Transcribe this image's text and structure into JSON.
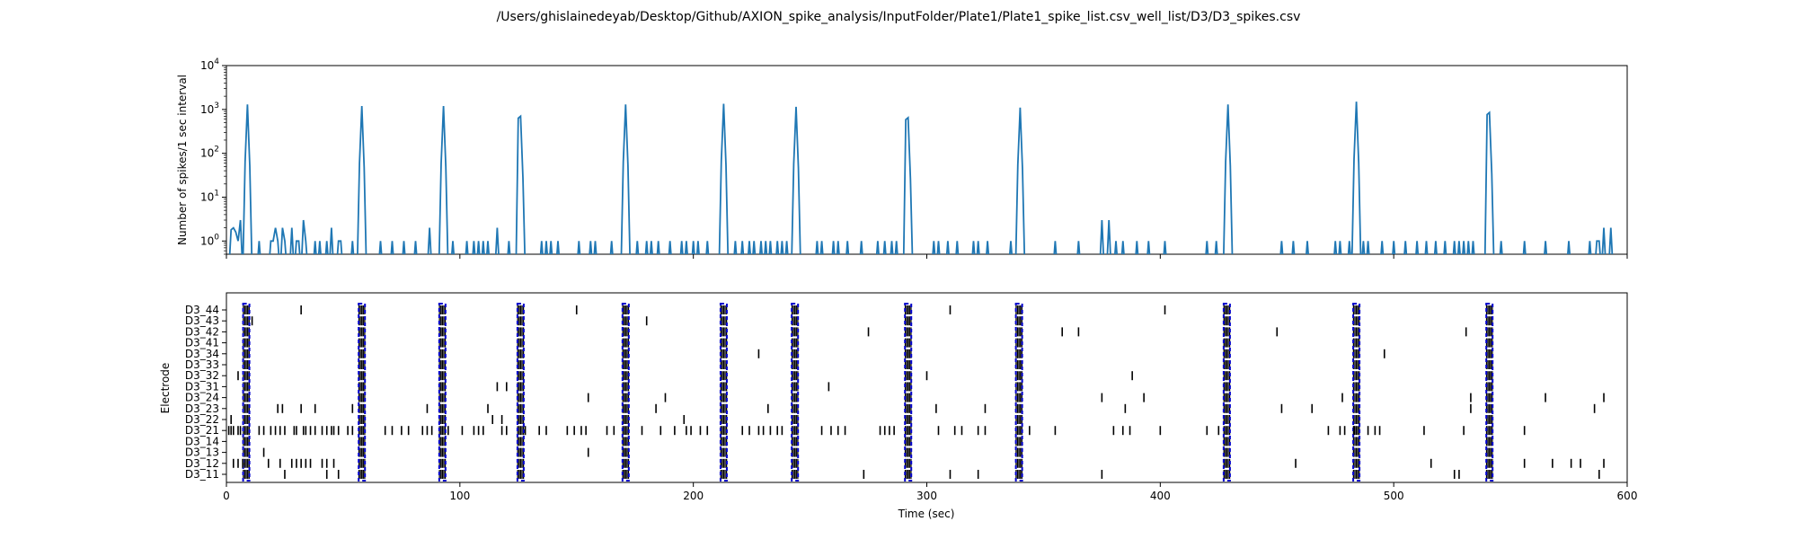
{
  "title": "/Users/ghislainedeyab/Desktop/Github/AXION_spike_analysis/InputFolder/Plate1/Plate1_spike_list.csv_well_list/D3/D3_spikes.csv",
  "chart_data": [
    {
      "type": "line",
      "ylabel": "Number of spikes/1 sec interval",
      "yscale": "log",
      "ylim": [
        0.5,
        10000
      ],
      "xlim": [
        0,
        600
      ],
      "yticks": [
        "10^0",
        "10^1",
        "10^2",
        "10^3",
        "10^4"
      ],
      "color": "#1f77b4",
      "burst_peaks": [
        {
          "t": 8.5,
          "v": 1300
        },
        {
          "t": 58,
          "v": 1200
        },
        {
          "t": 92.5,
          "v": 1200
        },
        {
          "t": 126,
          "v": 700
        },
        {
          "t": 171,
          "v": 1300
        },
        {
          "t": 213,
          "v": 1350
        },
        {
          "t": 243.5,
          "v": 1150
        },
        {
          "t": 292,
          "v": 650
        },
        {
          "t": 339.5,
          "v": 1100
        },
        {
          "t": 428.5,
          "v": 1300
        },
        {
          "t": 484,
          "v": 1500
        },
        {
          "t": 541,
          "v": 850
        }
      ],
      "baseline_value": 1,
      "noise_times": [
        2,
        3,
        4,
        5,
        14,
        19,
        20,
        21,
        22,
        24,
        25,
        28,
        30,
        31,
        33,
        34,
        38,
        40,
        43,
        45,
        48,
        49,
        54,
        66,
        71,
        76,
        81,
        87,
        97,
        103,
        106,
        108,
        110,
        112,
        116,
        121,
        135,
        137,
        139,
        142,
        151,
        156,
        158,
        165,
        176,
        180,
        182,
        185,
        190,
        195,
        197,
        200,
        202,
        206,
        212,
        218,
        221,
        224,
        226,
        229,
        231,
        233,
        236,
        238,
        240,
        253,
        255,
        260,
        262,
        266,
        272,
        279,
        282,
        285,
        287,
        303,
        305,
        309,
        313,
        320,
        322,
        326,
        336,
        355,
        365,
        375,
        378,
        381,
        384,
        390,
        395,
        402,
        420,
        424,
        452,
        457,
        463,
        475,
        477,
        481,
        487,
        489,
        495,
        500,
        505,
        510,
        514,
        518,
        522,
        526,
        528,
        530,
        532,
        534,
        546,
        556,
        565,
        575,
        584,
        587,
        588,
        590,
        593
      ]
    },
    {
      "type": "scatter",
      "marker": "vertical-tick",
      "xlabel": "Time (sec)",
      "ylabel": "Electrode",
      "xlim": [
        0,
        600
      ],
      "xticks": [
        0,
        100,
        200,
        300,
        400,
        500,
        600
      ],
      "categories": [
        "D3_11",
        "D3_12",
        "D3_13",
        "D3_14",
        "D3_21",
        "D3_22",
        "D3_23",
        "D3_24",
        "D3_31",
        "D3_32",
        "D3_33",
        "D3_34",
        "D3_41",
        "D3_42",
        "D3_43",
        "D3_44"
      ],
      "burst_times": [
        8.5,
        58,
        92.5,
        126,
        171,
        213,
        243.5,
        292,
        339.5,
        428.5,
        484,
        541
      ],
      "burst_color": "#0000cc",
      "spike_color": "#000000",
      "scattered_spikes": {
        "D3_44": [
          32,
          150,
          310,
          402
        ],
        "D3_43": [
          11,
          180
        ],
        "D3_42": [
          275,
          358,
          365,
          450,
          531
        ],
        "D3_41": [],
        "D3_34": [
          228,
          496
        ],
        "D3_33": [],
        "D3_32": [
          5,
          300,
          388
        ],
        "D3_31": [
          116,
          120,
          258
        ],
        "D3_24": [
          155,
          188,
          375,
          393,
          478,
          533,
          565,
          590
        ],
        "D3_23": [
          22,
          24,
          32,
          38,
          54,
          86,
          112,
          184,
          232,
          304,
          325,
          385,
          452,
          465,
          533,
          586
        ],
        "D3_22": [
          2,
          114,
          118,
          196
        ],
        "D3_21": [
          1,
          2,
          3,
          5,
          6,
          14,
          16,
          19,
          21,
          23,
          25,
          29,
          30,
          33,
          34,
          36,
          38,
          41,
          43,
          45,
          46,
          48,
          52,
          54,
          68,
          71,
          75,
          78,
          84,
          86,
          88,
          95,
          101,
          106,
          108,
          110,
          118,
          120,
          128,
          134,
          137,
          146,
          149,
          152,
          154,
          163,
          166,
          178,
          186,
          192,
          197,
          199,
          203,
          206,
          221,
          224,
          228,
          230,
          233,
          236,
          238,
          255,
          259,
          262,
          265,
          280,
          282,
          284,
          286,
          305,
          312,
          315,
          322,
          325,
          344,
          355,
          380,
          384,
          387,
          400,
          420,
          425,
          472,
          477,
          479,
          483,
          489,
          492,
          494,
          513,
          530,
          556
        ],
        "D3_14": [],
        "D3_13": [
          16,
          155
        ],
        "D3_12": [
          3,
          5,
          7,
          18,
          23,
          28,
          30,
          32,
          34,
          36,
          41,
          43,
          46,
          458,
          516,
          556,
          568,
          576,
          580,
          590
        ],
        "D3_11": [
          25,
          43,
          48,
          273,
          310,
          322,
          375,
          526,
          528,
          588
        ]
      }
    }
  ]
}
